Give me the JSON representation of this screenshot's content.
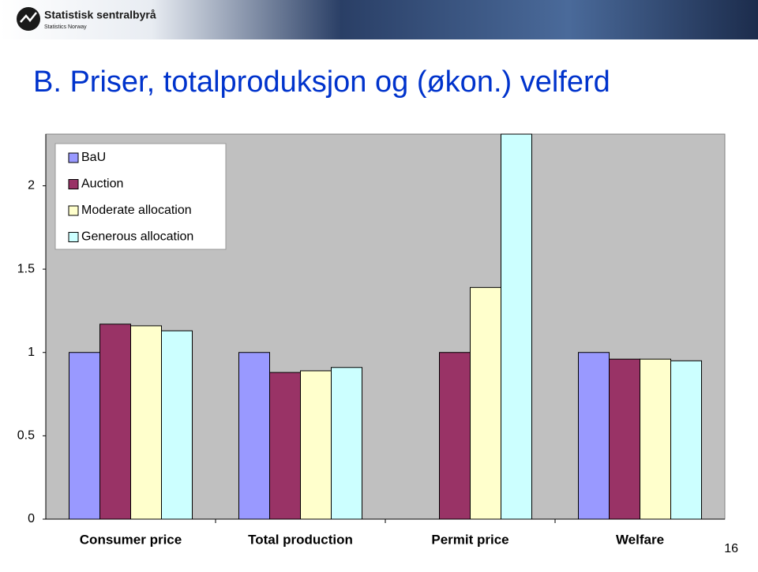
{
  "header": {
    "logo": "Statistisk sentralbyrå",
    "logo_sub": "Statistics Norway"
  },
  "page_number": 16,
  "chart_data": {
    "type": "bar",
    "title": "B. Priser, totalproduksjon og (økon.) velferd",
    "categories": [
      "Consumer price",
      "Total production",
      "Permit price",
      "Welfare"
    ],
    "series": [
      {
        "name": "BaU",
        "color": "#9999ff",
        "values": [
          1.0,
          1.0,
          null,
          1.0
        ]
      },
      {
        "name": "Auction",
        "color": "#993366",
        "values": [
          1.17,
          0.88,
          1.0,
          0.96
        ]
      },
      {
        "name": "Moderate allocation",
        "color": "#ffffcc",
        "values": [
          1.16,
          0.89,
          1.39,
          0.96
        ]
      },
      {
        "name": "Generous allocation",
        "color": "#ccffff",
        "values": [
          1.13,
          0.91,
          2.31,
          0.95
        ]
      }
    ],
    "ylim": [
      0,
      2.31
    ],
    "yticks": [
      0,
      0.5,
      1,
      1.5,
      2
    ],
    "grid": false,
    "legend": "top-left"
  }
}
